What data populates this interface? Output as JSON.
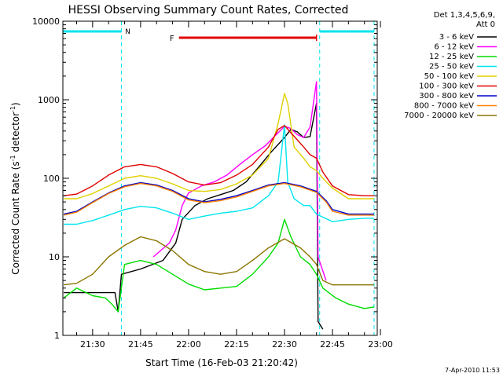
{
  "chart_data": {
    "type": "line",
    "title": "HESSI Observing Summary Count Rates, Corrected",
    "xlabel": "Start Time (16-Feb-03 21:20:42)",
    "ylabel_main": "Corrected Count Rate (s",
    "ylabel_sup1": "-1",
    "ylabel_mid": " detector",
    "ylabel_sup2": "-1",
    "ylabel_end": ")",
    "y_scale": "log",
    "ylim": [
      1,
      10000
    ],
    "xlim": [
      "21:20:42",
      "22:59:00"
    ],
    "y_ticks": [
      {
        "v": 1,
        "label": "1"
      },
      {
        "v": 10,
        "label": "10"
      },
      {
        "v": 100,
        "label": "100"
      },
      {
        "v": 1000,
        "label": "1000"
      },
      {
        "v": 10000,
        "label": "10000"
      }
    ],
    "x_ticks": [
      {
        "t": "21:30",
        "label": "21:30"
      },
      {
        "t": "21:45",
        "label": "21:45"
      },
      {
        "t": "22:00",
        "label": "22:00"
      },
      {
        "t": "22:15",
        "label": "22:15"
      },
      {
        "t": "22:30",
        "label": "22:30"
      },
      {
        "t": "22:45",
        "label": "22:45"
      },
      {
        "t": "23:00",
        "label": "23:00"
      }
    ],
    "legend_header": [
      "Det 1,3,4,5,6,9,",
      "Att 0"
    ],
    "legend_position": "right",
    "footer": "7-Apr-2010 11:53",
    "annotations": [
      {
        "label": "N",
        "color": "#00e5ee",
        "start": "21:20:42",
        "end": "21:39:00",
        "style": "dashed-bounds"
      },
      {
        "label": "",
        "color": "#00e5ee",
        "start": "22:41:00",
        "end": "22:58:00",
        "style": "dashed-bounds"
      },
      {
        "label": "F",
        "color": "#e00000",
        "start": "21:57:00",
        "end": "22:40:00",
        "style": "bar"
      }
    ],
    "series": [
      {
        "name": "3 - 6 keV",
        "color": "#000000",
        "points": [
          [
            "21:21",
            3.5
          ],
          [
            "21:37",
            3.5
          ],
          [
            "21:38",
            2.0
          ],
          [
            "21:39",
            6
          ],
          [
            "21:45",
            7
          ],
          [
            "21:52",
            9
          ],
          [
            "21:56",
            15
          ],
          [
            "21:58",
            30
          ],
          [
            "22:02",
            45
          ],
          [
            "22:06",
            55
          ],
          [
            "22:10",
            62
          ],
          [
            "22:14",
            70
          ],
          [
            "22:18",
            90
          ],
          [
            "22:22",
            140
          ],
          [
            "22:26",
            220
          ],
          [
            "22:30",
            330
          ],
          [
            "22:32",
            420
          ],
          [
            "22:34",
            390
          ],
          [
            "22:36",
            330
          ],
          [
            "22:38",
            340
          ],
          [
            "22:40",
            900
          ],
          [
            "22:40.5",
            1.5
          ],
          [
            "22:42",
            1.2
          ]
        ]
      },
      {
        "name": "6 - 12 keV",
        "color": "#ff00ff",
        "points": [
          [
            "21:49",
            10
          ],
          [
            "21:54",
            15
          ],
          [
            "21:56",
            22
          ],
          [
            "21:58",
            45
          ],
          [
            "22:00",
            65
          ],
          [
            "22:04",
            80
          ],
          [
            "22:08",
            90
          ],
          [
            "22:12",
            110
          ],
          [
            "22:16",
            150
          ],
          [
            "22:20",
            200
          ],
          [
            "22:24",
            260
          ],
          [
            "22:28",
            380
          ],
          [
            "22:30",
            460
          ],
          [
            "22:32",
            430
          ],
          [
            "22:34",
            360
          ],
          [
            "22:36",
            330
          ],
          [
            "22:38",
            450
          ],
          [
            "22:40",
            1700
          ],
          [
            "22:40.5",
            10
          ],
          [
            "22:43",
            5
          ]
        ]
      },
      {
        "name": "12 - 25 keV",
        "color": "#00dd00",
        "points": [
          [
            "21:21",
            3
          ],
          [
            "21:25",
            4
          ],
          [
            "21:30",
            3.2
          ],
          [
            "21:34",
            3
          ],
          [
            "21:36",
            2.5
          ],
          [
            "21:38",
            2
          ],
          [
            "21:40",
            8
          ],
          [
            "21:45",
            9
          ],
          [
            "21:50",
            8
          ],
          [
            "21:55",
            6
          ],
          [
            "22:00",
            4.5
          ],
          [
            "22:05",
            3.8
          ],
          [
            "22:10",
            4
          ],
          [
            "22:15",
            4.2
          ],
          [
            "22:20",
            6
          ],
          [
            "22:25",
            10
          ],
          [
            "22:28",
            15
          ],
          [
            "22:30",
            30
          ],
          [
            "22:32",
            18
          ],
          [
            "22:35",
            10
          ],
          [
            "22:38",
            8
          ],
          [
            "22:40",
            6
          ],
          [
            "22:42",
            4
          ],
          [
            "22:46",
            3
          ],
          [
            "22:50",
            2.5
          ],
          [
            "22:55",
            2.2
          ],
          [
            "22:58",
            2.3
          ]
        ]
      },
      {
        "name": "25 - 50 keV",
        "color": "#00e5ee",
        "points": [
          [
            "21:21",
            26
          ],
          [
            "21:25",
            26
          ],
          [
            "21:30",
            29
          ],
          [
            "21:35",
            34
          ],
          [
            "21:40",
            40
          ],
          [
            "21:45",
            44
          ],
          [
            "21:50",
            42
          ],
          [
            "21:55",
            36
          ],
          [
            "22:00",
            30
          ],
          [
            "22:05",
            33
          ],
          [
            "22:10",
            36
          ],
          [
            "22:15",
            38
          ],
          [
            "22:20",
            42
          ],
          [
            "22:25",
            60
          ],
          [
            "22:28",
            90
          ],
          [
            "22:30",
            480
          ],
          [
            "22:31",
            90
          ],
          [
            "22:33",
            55
          ],
          [
            "22:36",
            45
          ],
          [
            "22:38",
            45
          ],
          [
            "22:40",
            35
          ],
          [
            "22:42",
            32
          ],
          [
            "22:45",
            28
          ],
          [
            "22:50",
            30
          ],
          [
            "22:55",
            31
          ],
          [
            "22:58",
            31
          ]
        ]
      },
      {
        "name": "50 - 100 keV",
        "color": "#e0d000",
        "points": [
          [
            "21:21",
            55
          ],
          [
            "21:25",
            55
          ],
          [
            "21:30",
            64
          ],
          [
            "21:35",
            80
          ],
          [
            "21:40",
            100
          ],
          [
            "21:45",
            108
          ],
          [
            "21:50",
            100
          ],
          [
            "21:55",
            85
          ],
          [
            "22:00",
            70
          ],
          [
            "22:05",
            68
          ],
          [
            "22:10",
            72
          ],
          [
            "22:15",
            85
          ],
          [
            "22:20",
            110
          ],
          [
            "22:25",
            180
          ],
          [
            "22:28",
            500
          ],
          [
            "22:30",
            1200
          ],
          [
            "22:31",
            900
          ],
          [
            "22:33",
            250
          ],
          [
            "22:36",
            180
          ],
          [
            "22:38",
            140
          ],
          [
            "22:40",
            125
          ],
          [
            "22:42",
            100
          ],
          [
            "22:45",
            75
          ],
          [
            "22:50",
            55
          ],
          [
            "22:55",
            55
          ],
          [
            "22:58",
            55
          ]
        ]
      },
      {
        "name": "100 - 300 keV",
        "color": "#e00000",
        "points": [
          [
            "21:21",
            60
          ],
          [
            "21:25",
            63
          ],
          [
            "21:30",
            80
          ],
          [
            "21:35",
            110
          ],
          [
            "21:40",
            140
          ],
          [
            "21:45",
            150
          ],
          [
            "21:50",
            140
          ],
          [
            "21:55",
            115
          ],
          [
            "22:00",
            90
          ],
          [
            "22:05",
            82
          ],
          [
            "22:10",
            88
          ],
          [
            "22:15",
            110
          ],
          [
            "22:20",
            150
          ],
          [
            "22:25",
            250
          ],
          [
            "22:28",
            420
          ],
          [
            "22:30",
            470
          ],
          [
            "22:32",
            380
          ],
          [
            "22:36",
            250
          ],
          [
            "22:38",
            200
          ],
          [
            "22:40",
            180
          ],
          [
            "22:42",
            120
          ],
          [
            "22:45",
            80
          ],
          [
            "22:50",
            62
          ],
          [
            "22:55",
            60
          ],
          [
            "22:58",
            60
          ]
        ]
      },
      {
        "name": "300 - 800 keV",
        "color": "#0000cc",
        "points": [
          [
            "21:21",
            35
          ],
          [
            "21:25",
            38
          ],
          [
            "21:30",
            50
          ],
          [
            "21:35",
            65
          ],
          [
            "21:40",
            80
          ],
          [
            "21:45",
            88
          ],
          [
            "21:50",
            82
          ],
          [
            "21:55",
            70
          ],
          [
            "22:00",
            55
          ],
          [
            "22:05",
            50
          ],
          [
            "22:10",
            54
          ],
          [
            "22:15",
            60
          ],
          [
            "22:20",
            70
          ],
          [
            "22:25",
            82
          ],
          [
            "22:30",
            88
          ],
          [
            "22:35",
            80
          ],
          [
            "22:40",
            68
          ],
          [
            "22:43",
            52
          ],
          [
            "22:45",
            40
          ],
          [
            "22:50",
            35
          ],
          [
            "22:55",
            35
          ],
          [
            "22:58",
            35
          ]
        ]
      },
      {
        "name": "800 - 7000 keV",
        "color": "#ff8000",
        "points": [
          [
            "21:21",
            34
          ],
          [
            "21:25",
            37
          ],
          [
            "21:30",
            49
          ],
          [
            "21:35",
            64
          ],
          [
            "21:40",
            78
          ],
          [
            "21:45",
            86
          ],
          [
            "21:50",
            80
          ],
          [
            "21:55",
            68
          ],
          [
            "22:00",
            53
          ],
          [
            "22:05",
            49
          ],
          [
            "22:10",
            52
          ],
          [
            "22:15",
            58
          ],
          [
            "22:20",
            68
          ],
          [
            "22:25",
            80
          ],
          [
            "22:30",
            86
          ],
          [
            "22:35",
            78
          ],
          [
            "22:40",
            66
          ],
          [
            "22:43",
            50
          ],
          [
            "22:45",
            38
          ],
          [
            "22:50",
            34
          ],
          [
            "22:55",
            34
          ],
          [
            "22:58",
            34
          ]
        ]
      },
      {
        "name": "7000 - 20000 keV",
        "color": "#8b7500",
        "points": [
          [
            "21:21",
            4.4
          ],
          [
            "21:25",
            4.6
          ],
          [
            "21:30",
            6
          ],
          [
            "21:35",
            10
          ],
          [
            "21:40",
            14
          ],
          [
            "21:45",
            18
          ],
          [
            "21:50",
            16
          ],
          [
            "21:55",
            12
          ],
          [
            "22:00",
            8
          ],
          [
            "22:05",
            6.5
          ],
          [
            "22:10",
            6
          ],
          [
            "22:15",
            6.5
          ],
          [
            "22:20",
            9
          ],
          [
            "22:25",
            13
          ],
          [
            "22:30",
            17
          ],
          [
            "22:35",
            13
          ],
          [
            "22:38",
            10
          ],
          [
            "22:40",
            8
          ],
          [
            "22:42",
            5
          ],
          [
            "22:45",
            4.4
          ],
          [
            "22:50",
            4.4
          ],
          [
            "22:55",
            4.4
          ],
          [
            "22:58",
            4.4
          ]
        ]
      }
    ]
  }
}
